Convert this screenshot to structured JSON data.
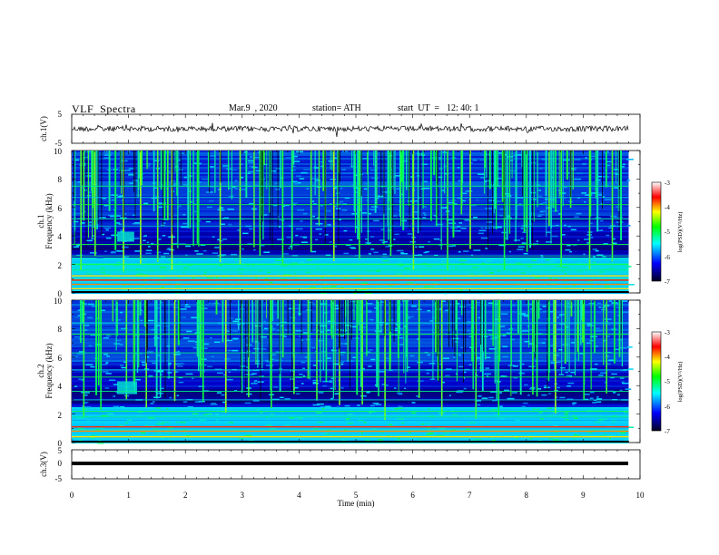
{
  "header": {
    "title": "VLF  Spectra",
    "date": "Mar.9  , 2020",
    "station": "station= ATH",
    "start_label": "start  UT  =",
    "start_time": "12: 40: 1"
  },
  "panels": {
    "ch1_waveform": {
      "ylabel": "ch.1(V)",
      "yticks": [
        "5",
        "-5"
      ]
    },
    "ch1_spectrogram": {
      "ylabel_top": "ch.1",
      "ylabel": "Frequency  (kHz)",
      "yticks": [
        "10",
        "8",
        "6",
        "4",
        "2",
        "0"
      ]
    },
    "ch2_spectrogram": {
      "ylabel_top": "ch.2",
      "ylabel": "Frequency  (kHz)",
      "yticks": [
        "10",
        "8",
        "6",
        "4",
        "2",
        "0"
      ]
    },
    "ch3_waveform": {
      "ylabel": "ch.3(V)",
      "yticks": [
        "5",
        "0",
        "-5"
      ]
    }
  },
  "xaxis": {
    "label": "Time  (min)",
    "ticks": [
      "0",
      "1",
      "2",
      "3",
      "4",
      "5",
      "6",
      "7",
      "8",
      "9",
      "10"
    ]
  },
  "colorbar": {
    "label": "log(PSD)(V²/Hz)",
    "ticks": [
      "-3",
      "-4",
      "-5",
      "-6",
      "-7"
    ],
    "colors": [
      "#ffffff",
      "#ff0000",
      "#ffff00",
      "#00ff00",
      "#00ffff",
      "#0000ff",
      "#000020"
    ]
  },
  "chart_data": [
    {
      "type": "line",
      "title": "ch.1 waveform",
      "ylabel": "ch.1(V)",
      "xlim": [
        0,
        10
      ],
      "ylim": [
        -5,
        5
      ],
      "description_values": {
        "mean_V": 0,
        "typical_amplitude_V": 1.5
      }
    },
    {
      "type": "heatmap",
      "ylabel": "Frequency (kHz)",
      "xlabel": "Time (min)",
      "xlim": [
        0,
        10
      ],
      "ylim": [
        0,
        10
      ],
      "data_end_min": 9.8,
      "zlim": [
        -7,
        -3
      ],
      "persistent_lines_kHz": [
        0.3,
        0.6,
        0.9,
        1.2,
        1.6,
        2.0,
        2.4,
        2.6,
        3.4,
        4.7,
        5.2,
        6.2,
        6.7,
        7.5
      ],
      "burst_times_min": [
        0.15,
        0.4,
        0.9,
        1.2,
        1.5,
        1.75,
        2.2,
        2.6,
        2.95,
        3.3,
        3.7,
        4.2,
        4.6,
        5.05,
        5.6,
        6.0,
        6.6,
        7.0,
        7.6,
        8.0,
        8.6,
        9.1,
        9.5
      ],
      "hiss_patch": {
        "t_min": [
          0.8,
          1.1
        ],
        "f_kHz": [
          3.6,
          4.3
        ]
      }
    },
    {
      "type": "heatmap",
      "ylabel": "Frequency (kHz)",
      "xlabel": "Time (min)",
      "xlim": [
        0,
        10
      ],
      "ylim": [
        0,
        10
      ],
      "data_end_min": 9.8,
      "zlim": [
        -7,
        -3
      ],
      "persistent_lines_kHz": [
        0.4,
        0.8,
        1.1,
        1.5,
        1.8,
        2.2,
        3.0,
        3.6,
        4.6,
        5.1,
        6.3,
        7.6,
        8.4
      ],
      "burst_times_min": [
        0.2,
        0.5,
        0.95,
        1.3,
        1.8,
        2.3,
        2.7,
        3.1,
        3.5,
        3.9,
        4.3,
        4.7,
        5.1,
        5.5,
        6.1,
        6.5,
        7.1,
        7.5,
        8.1,
        8.5,
        9.0,
        9.4
      ],
      "hiss_patch": {
        "t_min": [
          0.8,
          1.15
        ],
        "f_kHz": [
          3.4,
          4.3
        ]
      }
    },
    {
      "type": "line",
      "title": "ch.3 waveform",
      "ylabel": "ch.3(V)",
      "xlim": [
        0,
        10
      ],
      "ylim": [
        -5,
        5
      ],
      "description_values": {
        "level_V": -1.5
      }
    }
  ]
}
